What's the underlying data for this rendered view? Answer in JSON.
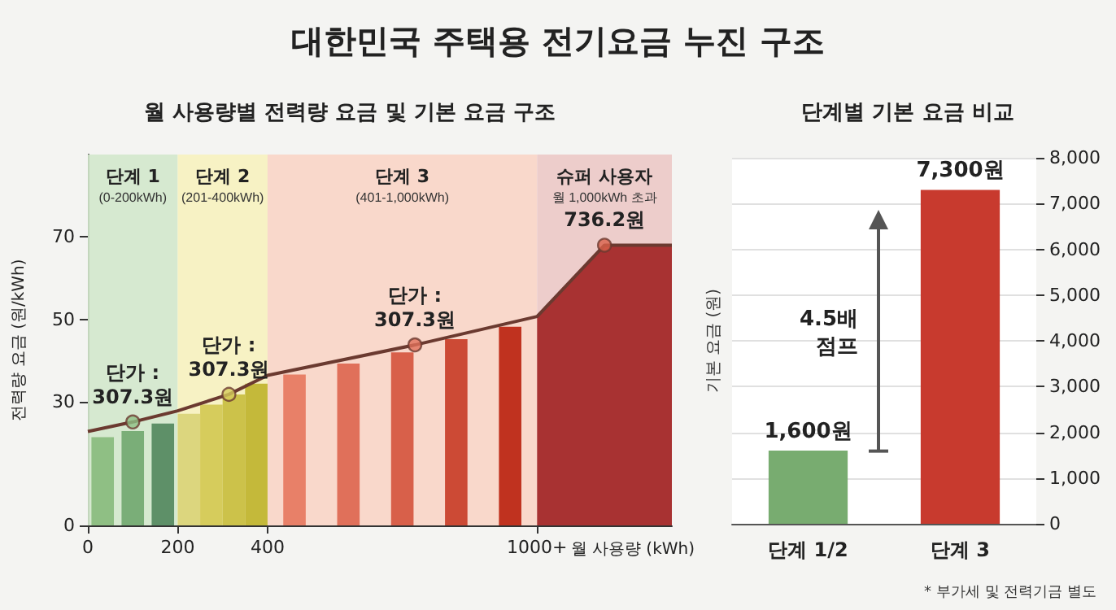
{
  "chart_data": [
    {
      "type": "bar",
      "title": "대한민국 주택용 전기요금 누진 구조",
      "subtitle": "월 사용량별 전력량 요금 및 기본 요금 구조",
      "xlabel": "월 사용량 (kWh)",
      "ylabel": "전력량 요금 (원/kWh)",
      "xticks": [
        0,
        200,
        400,
        {
          "value": 1000,
          "label": "1000+"
        }
      ],
      "xlim": [
        0,
        1300
      ],
      "ylim": [
        0,
        90
      ],
      "yticks": [
        0,
        30,
        50,
        70
      ],
      "bands": [
        {
          "axis": "x",
          "from": 0,
          "to": 200,
          "label": "단계 1\n(0-200kWh)",
          "color": "#d3e8cc"
        },
        {
          "axis": "x",
          "from": 200,
          "to": 400,
          "label": "단계 2\n(201-400kWh)",
          "color": "#f7f2bf"
        },
        {
          "axis": "x",
          "from": 400,
          "to": 1000,
          "label": "단계 3\n(401-1,000kWh)",
          "color": "#f9d5c6"
        },
        {
          "axis": "x",
          "from": 1000,
          "to": 1300,
          "label": "슈퍼 사용자\n월 1,000kWh 초과",
          "color": "#ecc9c6"
        }
      ],
      "series": [
        {
          "x": [
            33,
            100,
            167,
            225,
            275,
            325,
            375,
            460,
            580,
            700,
            820,
            940
          ],
          "values": [
            21.4,
            22.9,
            24.7,
            27.1,
            29.3,
            31.8,
            34.4,
            36.6,
            39.3,
            42.0,
            45.2,
            48.2
          ],
          "colors": [
            "#8fbf84",
            "#7aae78",
            "#5e9068",
            "#dcd67e",
            "#d6cc5c",
            "#ccc24a",
            "#c4b93a",
            "#e88068",
            "#e0705a",
            "#d8604a",
            "#cc4a35",
            "#c0321f"
          ]
        },
        {
          "type": "area",
          "x": [
            1000,
            1150,
            1300
          ],
          "values": [
            50.7,
            68,
            68
          ],
          "color": "#a83232"
        },
        {
          "type": "line",
          "x": [
            0,
            100,
            200,
            314,
            400,
            728,
            1000,
            1150,
            1300
          ],
          "values": [
            22.8,
            25.1,
            27.8,
            31.8,
            36.4,
            43.8,
            50.7,
            68,
            68
          ],
          "color": "#6b3a30"
        },
        {
          "type": "scatter",
          "marker": "circle",
          "x": [
            100,
            314,
            728,
            1150
          ],
          "values": [
            25.1,
            31.8,
            43.8,
            68
          ],
          "colors": [
            "#8fbf84",
            "#d6cc5c",
            "#e0705a",
            "#d8604a"
          ]
        }
      ],
      "annotations": [
        {
          "text": "단가 :\n307.3원",
          "x": 100,
          "y": 25.1
        },
        {
          "text": "단가 :\n307.3원",
          "x": 314,
          "y": 31.8
        },
        {
          "text": "단가 :\n307.3원",
          "x": 728,
          "y": 43.8
        },
        {
          "text": "736.2원",
          "x": 1150,
          "y": 68
        }
      ]
    },
    {
      "type": "bar",
      "title": "단계별 기본 요금 비교",
      "ylabel": "기본 요금 (원)",
      "categories": [
        "단계 1/2",
        "단계 3"
      ],
      "values": [
        1600,
        7300
      ],
      "colors": [
        "#78ac70",
        "#c83a2e"
      ],
      "value_labels": [
        "1,600원",
        "7,300원"
      ],
      "ylim": [
        0,
        8000
      ],
      "yticks": [
        0,
        {
          "value": 1000,
          "label": "1,000"
        },
        {
          "value": 2000,
          "label": "2,000"
        },
        {
          "value": 3000,
          "label": "3,000"
        },
        {
          "value": 4000,
          "label": "4,000"
        },
        {
          "value": 5000,
          "label": "5,000"
        },
        {
          "value": 6000,
          "label": "6,000"
        },
        {
          "value": 7000,
          "label": "7,000"
        },
        {
          "value": 8000,
          "label": "8,000"
        }
      ],
      "grid": "y",
      "annotations": [
        "4.5배\n점프",
        "* 부가세 및 전력기금 별도"
      ]
    }
  ]
}
